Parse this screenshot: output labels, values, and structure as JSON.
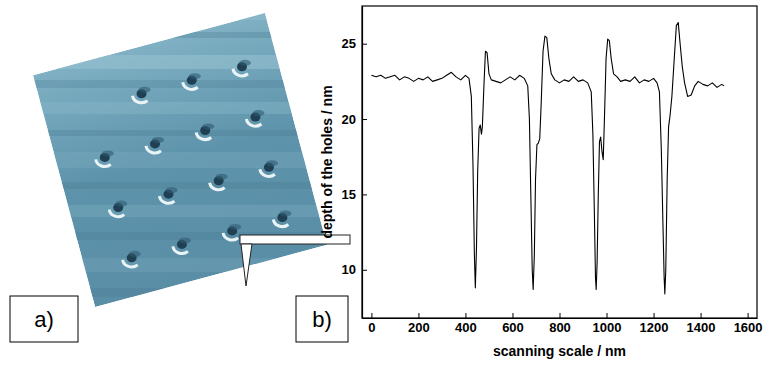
{
  "panel_labels": [
    "a)",
    "b)"
  ],
  "chart_data": {
    "type": "line",
    "x_label": "scanning scale / nm",
    "y_label": "depth of the holes / nm",
    "color": "#000000",
    "xlim": [
      -40,
      1640
    ],
    "ylim": [
      6.8,
      27.5
    ],
    "xticks": [
      0,
      200,
      400,
      600,
      800,
      1000,
      1200,
      1400,
      1600
    ],
    "yticks": [
      10,
      15,
      20,
      25
    ],
    "x": [
      0,
      20,
      40,
      60,
      80,
      100,
      120,
      140,
      160,
      180,
      200,
      220,
      240,
      260,
      280,
      300,
      320,
      340,
      360,
      380,
      400,
      415,
      425,
      432,
      438,
      442,
      447,
      452,
      458,
      463,
      468,
      472,
      478,
      485,
      492,
      500,
      510,
      530,
      550,
      570,
      590,
      610,
      630,
      650,
      665,
      672,
      678,
      684,
      688,
      693,
      698,
      704,
      710,
      716,
      722,
      730,
      738,
      746,
      755,
      765,
      780,
      800,
      820,
      840,
      860,
      880,
      900,
      920,
      935,
      942,
      948,
      953,
      956,
      960,
      965,
      970,
      975,
      981,
      986,
      992,
      998,
      1005,
      1012,
      1020,
      1030,
      1045,
      1060,
      1080,
      1100,
      1120,
      1140,
      1160,
      1180,
      1200,
      1215,
      1225,
      1233,
      1240,
      1245,
      1248,
      1252,
      1258,
      1264,
      1270,
      1278,
      1288,
      1297,
      1305,
      1313,
      1322,
      1332,
      1345,
      1360,
      1375,
      1390,
      1410,
      1430,
      1450,
      1470,
      1490,
      1500
    ],
    "values": [
      22.9,
      22.8,
      22.9,
      22.7,
      22.8,
      22.9,
      22.6,
      22.8,
      22.7,
      22.5,
      22.7,
      22.6,
      22.8,
      22.5,
      22.6,
      22.7,
      22.9,
      23.1,
      22.8,
      22.6,
      22.9,
      22.7,
      21.5,
      17,
      11,
      8.8,
      11.5,
      16.5,
      19.4,
      19.6,
      19,
      19.5,
      22,
      24.5,
      24.4,
      23,
      22.6,
      22.5,
      22.4,
      22.6,
      22.8,
      22.6,
      22.9,
      22.7,
      22.2,
      20,
      15,
      10,
      8.7,
      11,
      16,
      18.3,
      18.4,
      18.7,
      21,
      24.5,
      25.5,
      25.4,
      24,
      23,
      22.6,
      22.4,
      22.6,
      22.5,
      22.8,
      22.5,
      22.6,
      22.4,
      21.8,
      19,
      14,
      9.5,
      8.7,
      10.5,
      15,
      18.5,
      18.8,
      17.8,
      17.3,
      20.5,
      24,
      25.3,
      25.2,
      24,
      23,
      22.8,
      22.5,
      22.6,
      22.5,
      22.8,
      22.4,
      22.6,
      22.5,
      22.7,
      22.4,
      21.8,
      18,
      13,
      9.5,
      8.4,
      10,
      16,
      19.5,
      20.2,
      21.5,
      24,
      26.2,
      26.4,
      25,
      23.5,
      22.4,
      21.5,
      21.6,
      22.2,
      22.5,
      22.3,
      22.2,
      22.4,
      22.1,
      22.3,
      22.2
    ]
  }
}
